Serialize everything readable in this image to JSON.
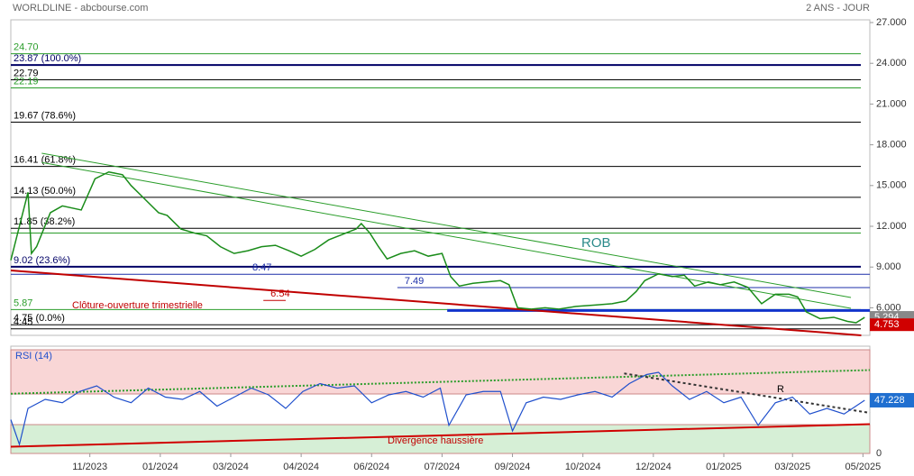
{
  "chart_data": {
    "type": "line",
    "title": "WORLDLINE - abcbourse.com",
    "subtitle": "2 ANS - JOUR",
    "x": [
      0,
      10,
      12,
      15,
      23,
      30,
      41,
      49,
      57,
      65,
      70,
      78,
      86,
      91,
      99,
      107,
      114,
      122,
      130,
      138,
      146,
      154,
      162,
      169,
      177,
      185,
      193,
      201,
      204,
      209,
      214,
      219,
      227,
      235,
      243,
      251,
      256,
      261,
      269,
      277,
      285,
      290,
      295,
      303,
      311,
      319,
      329,
      340,
      350,
      358,
      364,
      369,
      377,
      385,
      392,
      398,
      406,
      413,
      421,
      429,
      437,
      445,
      453,
      458,
      463,
      471,
      479,
      487,
      492,
      497
    ],
    "series": [
      {
        "name": "WORLDLINE",
        "color": "#1a8c1a",
        "values": [
          9.5,
          14.5,
          10,
          10.5,
          13,
          13.5,
          13.2,
          15.5,
          16,
          15.8,
          15,
          14,
          13,
          12.8,
          11.8,
          11.5,
          11.3,
          10.5,
          10,
          10.2,
          10.5,
          10.6,
          10.2,
          9.8,
          10.3,
          11,
          11.4,
          11.8,
          12.2,
          11.5,
          10.5,
          9.6,
          10,
          10.2,
          9.8,
          10,
          8.3,
          7.6,
          7.8,
          7.9,
          8,
          7.7,
          6,
          5.9,
          6,
          5.9,
          6.1,
          6.2,
          6.3,
          6.5,
          7.2,
          8,
          8.5,
          8.3,
          8.4,
          7.6,
          7.9,
          7.7,
          7.9,
          7.5,
          6.3,
          7,
          7,
          6.8,
          5.7,
          5.2,
          5.3,
          5,
          4.9,
          5.294
        ]
      }
    ],
    "xlim": [
      0,
      500
    ],
    "xticks": [
      {
        "value": 46,
        "label": "11/2023"
      },
      {
        "value": 87,
        "label": "01/2024"
      },
      {
        "value": 128,
        "label": "03/2024"
      },
      {
        "value": 169,
        "label": "04/2024"
      },
      {
        "value": 210,
        "label": "06/2024"
      },
      {
        "value": 251,
        "label": "07/2024"
      },
      {
        "value": 292,
        "label": "09/2024"
      },
      {
        "value": 333,
        "label": "10/2024"
      },
      {
        "value": 374,
        "label": "12/2024"
      },
      {
        "value": 415,
        "label": "01/2025"
      },
      {
        "value": 455,
        "label": "03/2025"
      },
      {
        "value": 496,
        "label": "05/2025"
      }
    ],
    "ylim": [
      3.97,
      27.2
    ],
    "yticks": [
      {
        "value": 27,
        "label": "27.000"
      },
      {
        "value": 24,
        "label": "24.000"
      },
      {
        "value": 21,
        "label": "21.000"
      },
      {
        "value": 18,
        "label": "18.000"
      },
      {
        "value": 15,
        "label": "15.000"
      },
      {
        "value": 12,
        "label": "12.000"
      },
      {
        "value": 9,
        "label": "9.000"
      },
      {
        "value": 6,
        "label": "6.000"
      }
    ],
    "levels": [
      {
        "value": 24.7,
        "label": "24.70",
        "color": "#2a9d2a"
      },
      {
        "value": 23.87,
        "label": "23.87 (100.0%)",
        "color": "#000066"
      },
      {
        "value": 22.79,
        "label": "22.79",
        "color": "#000000"
      },
      {
        "value": 22.19,
        "label": "22.19",
        "color": "#2a9d2a"
      },
      {
        "value": 19.67,
        "label": "19.67 (78.6%)",
        "color": "#000000"
      },
      {
        "value": 16.41,
        "label": "16.41 (61.8%)",
        "color": "#000000"
      },
      {
        "value": 14.13,
        "label": "14.13 (50.0%)",
        "color": "#000000"
      },
      {
        "value": 11.85,
        "label": "11.85 (38.2%)",
        "color": "#000000"
      },
      {
        "value": 11.5,
        "color": "#2a9d2a"
      },
      {
        "value": 9.02,
        "label": "9.02 (23.6%)",
        "color": "#000066"
      },
      {
        "value": 5.87,
        "label": "5.87",
        "color": "#2a9d2a"
      },
      {
        "value": 4.75,
        "label": "4.75 (0.0%)",
        "color": "#000000"
      },
      {
        "value": 4.45,
        "label": "4.45",
        "color": "#000000"
      }
    ],
    "segments": [
      {
        "value": 8.47,
        "label": "8.47",
        "from": 0,
        "to": 500,
        "color": "#1c2fa8"
      },
      {
        "value": 7.49,
        "label": "7.49",
        "from": 225,
        "to": 500,
        "color": "#1c2fa8"
      },
      {
        "value": 6.54,
        "label": "6.54",
        "from": 147,
        "to": 160,
        "color": "#c00000"
      },
      {
        "value": 5.8,
        "from": 254,
        "to": 500,
        "color": "#1133cc"
      }
    ],
    "trendlines": [
      {
        "x": [
          18,
          489
        ],
        "values": [
          17.38,
          6.76
        ],
        "color": "#2a9d2a"
      },
      {
        "x": [
          18,
          489
        ],
        "values": [
          16.7,
          5.96
        ],
        "color": "#2a9d2a"
      },
      {
        "x": [
          0,
          495
        ],
        "values": [
          8.75,
          3.97
        ],
        "color": "#c00000"
      }
    ],
    "annotations": [
      "ROB",
      "Clôture-ouverture trimestrielle"
    ],
    "last_values": [
      {
        "value": 5.294,
        "label": "5.294",
        "color": "#888888"
      },
      {
        "value": 4.753,
        "label": "4.753",
        "color": "#d00000"
      }
    ],
    "rsi": {
      "name": "RSI (14)",
      "color": "#1f4fcc",
      "x": [
        0,
        5,
        10,
        20,
        30,
        40,
        50,
        60,
        70,
        80,
        90,
        100,
        110,
        120,
        130,
        140,
        150,
        160,
        170,
        180,
        190,
        200,
        210,
        220,
        230,
        240,
        250,
        255,
        265,
        275,
        285,
        292,
        300,
        310,
        320,
        330,
        340,
        350,
        360,
        370,
        377,
        385,
        395,
        405,
        415,
        425,
        435,
        445,
        455,
        465,
        475,
        485,
        497
      ],
      "values": [
        30,
        8,
        40,
        48,
        45,
        55,
        60,
        50,
        45,
        58,
        50,
        48,
        55,
        42,
        50,
        58,
        52,
        40,
        55,
        62,
        58,
        60,
        45,
        52,
        55,
        50,
        58,
        25,
        52,
        55,
        55,
        20,
        45,
        50,
        48,
        52,
        55,
        50,
        62,
        70,
        72,
        60,
        48,
        55,
        45,
        50,
        25,
        45,
        50,
        35,
        40,
        35,
        47.228
      ],
      "ylim": [
        0,
        95.2
      ],
      "yticks": [
        0
      ],
      "last_label": "47.228",
      "bands": [
        {
          "from": 52.8,
          "to": 92,
          "color": "#f9d6d6"
        },
        {
          "from": 0,
          "to": 25.6,
          "color": "#d6efd6"
        }
      ],
      "trendlines": [
        {
          "x": [
            0,
            500
          ],
          "values": [
            53,
            74
          ],
          "color": "#2a9d2a"
        },
        {
          "x": [
            0,
            500
          ],
          "values": [
            6,
            26
          ],
          "color": "#d00000"
        },
        {
          "x": [
            357,
            500
          ],
          "values": [
            71,
            36
          ],
          "color": "#333333"
        }
      ],
      "annotations": [
        "R",
        "Divergence haussière"
      ]
    }
  }
}
